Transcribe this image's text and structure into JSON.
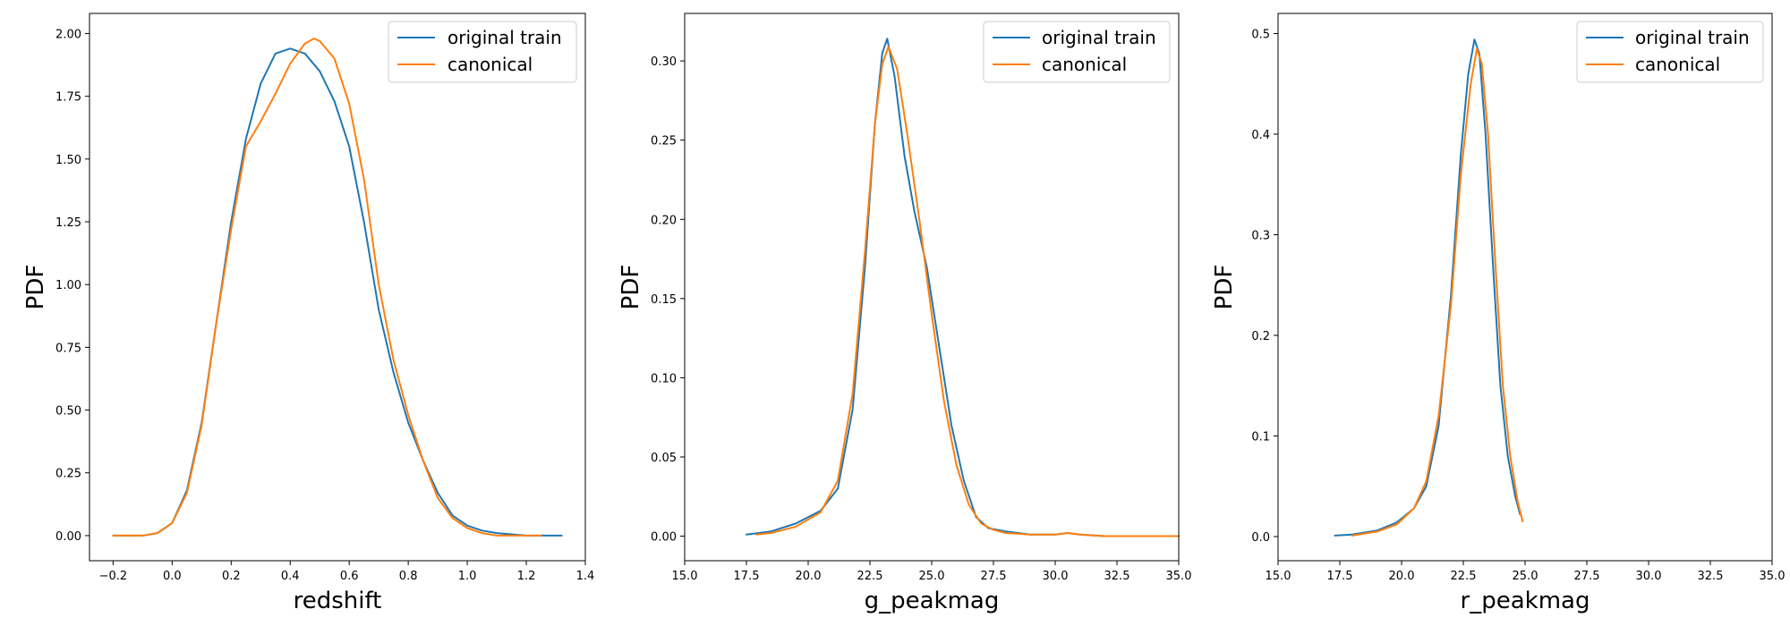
{
  "figure": {
    "background": "#ffffff",
    "series_colors": [
      "#1f77b4",
      "#ff7f0e"
    ]
  },
  "chart_data": [
    {
      "type": "line",
      "xlabel": "redshift",
      "ylabel": "PDF",
      "xlim": [
        -0.28,
        1.4
      ],
      "ylim": [
        -0.1,
        2.08
      ],
      "xticks": [
        -0.2,
        0.0,
        0.2,
        0.4,
        0.6,
        0.8,
        1.0,
        1.2,
        1.4
      ],
      "xtick_labels": [
        "−0.2",
        "0.0",
        "0.2",
        "0.4",
        "0.6",
        "0.8",
        "1.0",
        "1.2",
        "1.4"
      ],
      "yticks": [
        0.0,
        0.25,
        0.5,
        0.75,
        1.0,
        1.25,
        1.5,
        1.75,
        2.0
      ],
      "ytick_labels": [
        "0.00",
        "0.25",
        "0.50",
        "0.75",
        "1.00",
        "1.25",
        "1.50",
        "1.75",
        "2.00"
      ],
      "legend_position": "top-right",
      "series": [
        {
          "name": "original train",
          "color": "#1f77b4",
          "x": [
            -0.2,
            -0.1,
            -0.05,
            0.0,
            0.05,
            0.1,
            0.15,
            0.2,
            0.25,
            0.3,
            0.35,
            0.4,
            0.45,
            0.5,
            0.55,
            0.6,
            0.65,
            0.7,
            0.75,
            0.8,
            0.85,
            0.9,
            0.95,
            1.0,
            1.05,
            1.1,
            1.2,
            1.32
          ],
          "y": [
            0.0,
            0.0,
            0.01,
            0.05,
            0.18,
            0.45,
            0.85,
            1.25,
            1.58,
            1.8,
            1.92,
            1.94,
            1.92,
            1.85,
            1.73,
            1.55,
            1.25,
            0.9,
            0.65,
            0.45,
            0.3,
            0.17,
            0.08,
            0.04,
            0.02,
            0.01,
            0.0,
            0.0
          ]
        },
        {
          "name": "canonical",
          "color": "#ff7f0e",
          "x": [
            -0.2,
            -0.1,
            -0.05,
            0.0,
            0.05,
            0.1,
            0.15,
            0.2,
            0.25,
            0.3,
            0.35,
            0.4,
            0.45,
            0.48,
            0.5,
            0.55,
            0.6,
            0.65,
            0.7,
            0.75,
            0.8,
            0.85,
            0.9,
            0.95,
            1.0,
            1.05,
            1.1,
            1.2,
            1.25
          ],
          "y": [
            0.0,
            0.0,
            0.01,
            0.05,
            0.17,
            0.44,
            0.85,
            1.22,
            1.55,
            1.65,
            1.76,
            1.88,
            1.96,
            1.98,
            1.97,
            1.9,
            1.72,
            1.42,
            1.0,
            0.7,
            0.48,
            0.3,
            0.15,
            0.07,
            0.03,
            0.01,
            0.0,
            0.0,
            0.0
          ]
        }
      ]
    },
    {
      "type": "line",
      "xlabel": "g_peakmag",
      "ylabel": "PDF",
      "xlim": [
        15.0,
        35.0
      ],
      "ylim": [
        -0.0155,
        0.33
      ],
      "xticks": [
        15.0,
        17.5,
        20.0,
        22.5,
        25.0,
        27.5,
        30.0,
        32.5,
        35.0
      ],
      "xtick_labels": [
        "15.0",
        "17.5",
        "20.0",
        "22.5",
        "25.0",
        "27.5",
        "30.0",
        "32.5",
        "35.0"
      ],
      "yticks": [
        0.0,
        0.05,
        0.1,
        0.15,
        0.2,
        0.25,
        0.3
      ],
      "ytick_labels": [
        "0.00",
        "0.05",
        "0.10",
        "0.15",
        "0.20",
        "0.25",
        "0.30"
      ],
      "legend_position": "top-right",
      "series": [
        {
          "name": "original train",
          "color": "#1f77b4",
          "x": [
            17.5,
            18.5,
            19.5,
            20.5,
            21.2,
            21.8,
            22.3,
            22.7,
            23.0,
            23.2,
            23.5,
            23.9,
            24.3,
            24.8,
            25.3,
            25.8,
            26.3,
            26.8,
            27.3,
            28.0,
            29.0,
            30.0,
            30.5,
            31.0,
            32.0,
            35.0
          ],
          "y": [
            0.001,
            0.003,
            0.008,
            0.016,
            0.03,
            0.08,
            0.17,
            0.26,
            0.305,
            0.314,
            0.29,
            0.24,
            0.205,
            0.17,
            0.12,
            0.07,
            0.035,
            0.012,
            0.005,
            0.003,
            0.001,
            0.001,
            0.002,
            0.001,
            0.0,
            0.0
          ]
        },
        {
          "name": "canonical",
          "color": "#ff7f0e",
          "x": [
            17.9,
            18.5,
            19.5,
            20.5,
            21.2,
            21.8,
            22.3,
            22.7,
            23.0,
            23.25,
            23.6,
            24.0,
            24.5,
            25.0,
            25.5,
            26.0,
            26.5,
            27.0,
            27.5,
            28.0,
            29.0,
            30.0,
            30.5,
            31.0,
            32.0,
            35.0
          ],
          "y": [
            0.001,
            0.002,
            0.006,
            0.015,
            0.035,
            0.09,
            0.18,
            0.26,
            0.298,
            0.309,
            0.295,
            0.255,
            0.2,
            0.14,
            0.085,
            0.045,
            0.02,
            0.008,
            0.004,
            0.002,
            0.001,
            0.001,
            0.002,
            0.001,
            0.0,
            0.0
          ]
        }
      ]
    },
    {
      "type": "line",
      "xlabel": "r_peakmag",
      "ylabel": "PDF",
      "xlim": [
        15.0,
        35.0
      ],
      "ylim": [
        -0.024,
        0.52
      ],
      "xticks": [
        15.0,
        17.5,
        20.0,
        22.5,
        25.0,
        27.5,
        30.0,
        32.5,
        35.0
      ],
      "xtick_labels": [
        "15.0",
        "17.5",
        "20.0",
        "22.5",
        "25.0",
        "27.5",
        "30.0",
        "32.5",
        "35.0"
      ],
      "yticks": [
        0.0,
        0.1,
        0.2,
        0.3,
        0.4,
        0.5
      ],
      "ytick_labels": [
        "0.0",
        "0.1",
        "0.2",
        "0.3",
        "0.4",
        "0.5"
      ],
      "legend_position": "top-right",
      "series": [
        {
          "name": "original train",
          "color": "#1f77b4",
          "x": [
            17.3,
            18.0,
            19.0,
            19.8,
            20.5,
            21.0,
            21.5,
            22.0,
            22.4,
            22.7,
            22.95,
            23.15,
            23.4,
            23.7,
            24.0,
            24.3,
            24.6,
            24.8
          ],
          "y": [
            0.001,
            0.002,
            0.006,
            0.014,
            0.028,
            0.05,
            0.11,
            0.24,
            0.38,
            0.46,
            0.494,
            0.48,
            0.4,
            0.27,
            0.15,
            0.08,
            0.04,
            0.022
          ]
        },
        {
          "name": "canonical",
          "color": "#ff7f0e",
          "x": [
            18.0,
            19.0,
            19.8,
            20.5,
            21.0,
            21.5,
            22.0,
            22.4,
            22.8,
            23.05,
            23.25,
            23.5,
            23.8,
            24.1,
            24.4,
            24.7,
            24.9
          ],
          "y": [
            0.001,
            0.005,
            0.012,
            0.028,
            0.055,
            0.12,
            0.23,
            0.36,
            0.45,
            0.485,
            0.47,
            0.4,
            0.27,
            0.15,
            0.08,
            0.035,
            0.015
          ]
        }
      ]
    }
  ]
}
